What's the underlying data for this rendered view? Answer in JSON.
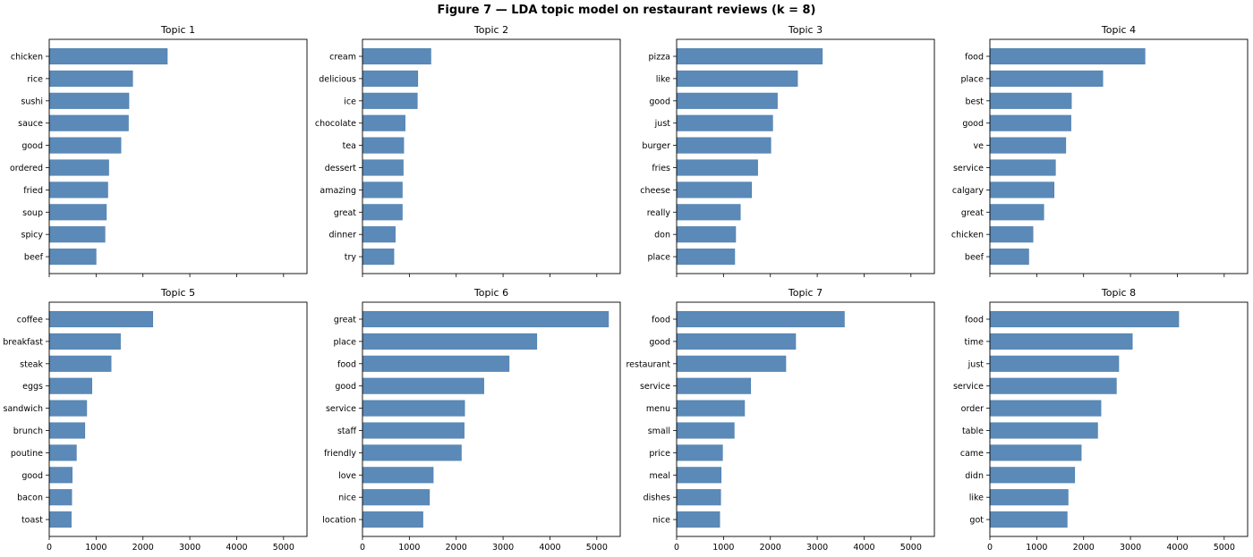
{
  "figure": {
    "title": "Figure 7  —  LDA topic model on restaurant reviews (k = 8)"
  },
  "chart_data": [
    {
      "type": "bar",
      "orientation": "horizontal",
      "title": "Topic 1",
      "categories": [
        "chicken",
        "rice",
        "sushi",
        "sauce",
        "good",
        "ordered",
        "fried",
        "soup",
        "spicy",
        "beef"
      ],
      "values": [
        2520,
        1780,
        1700,
        1690,
        1530,
        1270,
        1250,
        1220,
        1190,
        1000
      ],
      "xlim": [
        0,
        5500
      ],
      "xticks": [
        0,
        1000,
        2000,
        3000,
        4000,
        5000
      ],
      "xticklabels_shown": false
    },
    {
      "type": "bar",
      "orientation": "horizontal",
      "title": "Topic 2",
      "categories": [
        "cream",
        "delicious",
        "ice",
        "chocolate",
        "tea",
        "dessert",
        "amazing",
        "great",
        "dinner",
        "try"
      ],
      "values": [
        1460,
        1180,
        1170,
        910,
        880,
        870,
        850,
        850,
        700,
        670
      ],
      "xlim": [
        0,
        5500
      ],
      "xticks": [
        0,
        1000,
        2000,
        3000,
        4000,
        5000
      ],
      "xticklabels_shown": false
    },
    {
      "type": "bar",
      "orientation": "horizontal",
      "title": "Topic 3",
      "categories": [
        "pizza",
        "like",
        "good",
        "just",
        "burger",
        "fries",
        "cheese",
        "really",
        "don",
        "place"
      ],
      "values": [
        3110,
        2580,
        2150,
        2050,
        2010,
        1730,
        1600,
        1360,
        1260,
        1240
      ],
      "xlim": [
        0,
        5500
      ],
      "xticks": [
        0,
        1000,
        2000,
        3000,
        4000,
        5000
      ],
      "xticklabels_shown": false
    },
    {
      "type": "bar",
      "orientation": "horizontal",
      "title": "Topic 4",
      "categories": [
        "food",
        "place",
        "best",
        "good",
        "ve",
        "service",
        "calgary",
        "great",
        "chicken",
        "beef"
      ],
      "values": [
        3310,
        2410,
        1740,
        1730,
        1620,
        1400,
        1370,
        1150,
        920,
        830
      ],
      "xlim": [
        0,
        5500
      ],
      "xticks": [
        0,
        1000,
        2000,
        3000,
        4000,
        5000
      ],
      "xticklabels_shown": false
    },
    {
      "type": "bar",
      "orientation": "horizontal",
      "title": "Topic 5",
      "categories": [
        "coffee",
        "breakfast",
        "steak",
        "eggs",
        "sandwich",
        "brunch",
        "poutine",
        "good",
        "bacon",
        "toast"
      ],
      "values": [
        2210,
        1520,
        1320,
        910,
        800,
        760,
        580,
        490,
        480,
        470
      ],
      "xlim": [
        0,
        5500
      ],
      "xticks": [
        0,
        1000,
        2000,
        3000,
        4000,
        5000
      ],
      "xticklabels": [
        "0",
        "1000",
        "2000",
        "3000",
        "4000",
        "5000"
      ],
      "xticklabels_shown": true
    },
    {
      "type": "bar",
      "orientation": "horizontal",
      "title": "Topic 6",
      "categories": [
        "great",
        "place",
        "food",
        "good",
        "service",
        "staff",
        "friendly",
        "love",
        "nice",
        "location"
      ],
      "values": [
        5250,
        3720,
        3130,
        2590,
        2180,
        2170,
        2110,
        1510,
        1430,
        1290
      ],
      "xlim": [
        0,
        5500
      ],
      "xticks": [
        0,
        1000,
        2000,
        3000,
        4000,
        5000
      ],
      "xticklabels": [
        "0",
        "1000",
        "2000",
        "3000",
        "4000",
        "5000"
      ],
      "xticklabels_shown": true
    },
    {
      "type": "bar",
      "orientation": "horizontal",
      "title": "Topic 7",
      "categories": [
        "food",
        "good",
        "restaurant",
        "service",
        "menu",
        "small",
        "price",
        "meal",
        "dishes",
        "nice"
      ],
      "values": [
        3580,
        2540,
        2330,
        1580,
        1450,
        1230,
        980,
        950,
        940,
        920
      ],
      "xlim": [
        0,
        5500
      ],
      "xticks": [
        0,
        1000,
        2000,
        3000,
        4000,
        5000
      ],
      "xticklabels": [
        "0",
        "1000",
        "2000",
        "3000",
        "4000",
        "5000"
      ],
      "xticklabels_shown": true
    },
    {
      "type": "bar",
      "orientation": "horizontal",
      "title": "Topic 8",
      "categories": [
        "food",
        "time",
        "just",
        "service",
        "order",
        "table",
        "came",
        "didn",
        "like",
        "got"
      ],
      "values": [
        4030,
        3040,
        2750,
        2700,
        2370,
        2300,
        1950,
        1810,
        1670,
        1650
      ],
      "xlim": [
        0,
        5500
      ],
      "xticks": [
        0,
        1000,
        2000,
        3000,
        4000,
        5000
      ],
      "xticklabels": [
        "0",
        "1000",
        "2000",
        "3000",
        "4000",
        "5000"
      ],
      "xticklabels_shown": true
    }
  ],
  "colors": {
    "bar": "#5b8ab8",
    "bar_edge": "#4f7fae",
    "axes": "#000000"
  }
}
